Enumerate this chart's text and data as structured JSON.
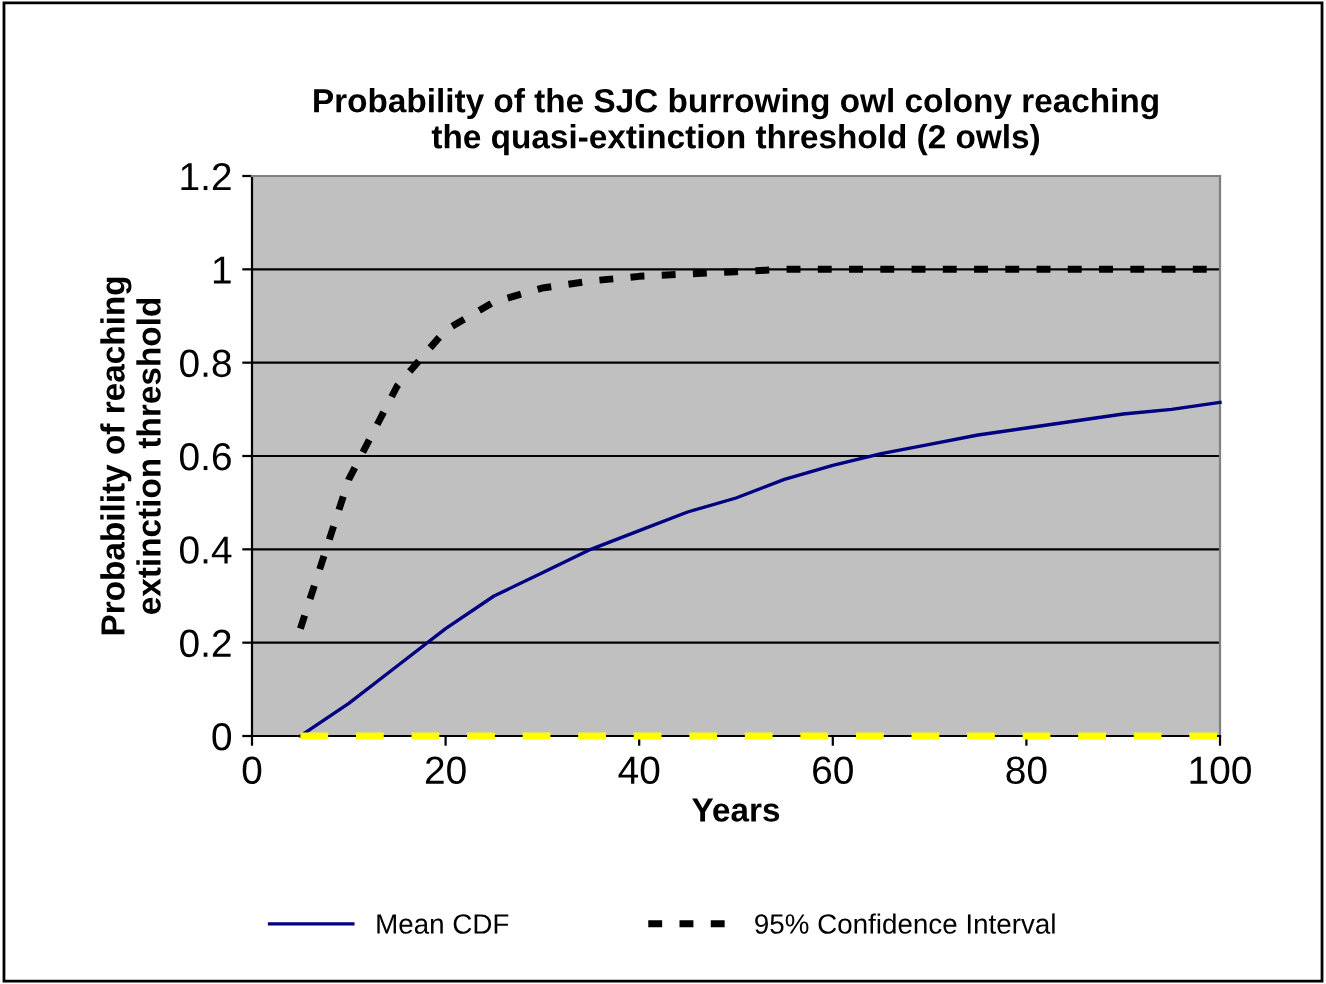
{
  "chart_data": {
    "type": "line",
    "title": "Probability of the SJC burrowing owl colony reaching\nthe quasi-extinction threshold (2 owls)",
    "xlabel": "Years",
    "ylabel": "Probability of reaching\nextinction threshold",
    "x": [
      5,
      10,
      15,
      20,
      25,
      30,
      35,
      40,
      45,
      50,
      55,
      60,
      65,
      70,
      75,
      80,
      85,
      90,
      95,
      100
    ],
    "series": [
      {
        "name": "Mean CDF",
        "color": "#000080",
        "line_style": "solid",
        "values": [
          0,
          0.07,
          0.15,
          0.23,
          0.3,
          0.35,
          0.4,
          0.44,
          0.48,
          0.51,
          0.55,
          0.58,
          0.605,
          0.625,
          0.645,
          0.66,
          0.675,
          0.69,
          0.7,
          0.715
        ]
      },
      {
        "name": "95% Confidence Interval",
        "color": "#000000",
        "line_style": "dotted",
        "values": [
          0.23,
          0.55,
          0.75,
          0.87,
          0.93,
          0.96,
          0.975,
          0.985,
          0.99,
          0.995,
          1,
          1,
          1,
          1,
          1,
          1,
          1,
          1,
          1,
          1
        ]
      },
      {
        "color": "#ffff00",
        "line_style": "dashed",
        "values": [
          0,
          0,
          0,
          0,
          0,
          0,
          0,
          0,
          0,
          0,
          0,
          0,
          0,
          0,
          0,
          0,
          0,
          0,
          0,
          0
        ]
      }
    ],
    "xlim": [
      0,
      100
    ],
    "xticks": [
      0,
      20,
      40,
      60,
      80,
      100
    ],
    "ylim": [
      0,
      1.2
    ],
    "yticks": [
      0,
      0.2,
      0.4,
      0.6,
      0.8,
      1,
      1.2
    ],
    "grid": "y",
    "legend": "bottom",
    "marker": "none"
  }
}
